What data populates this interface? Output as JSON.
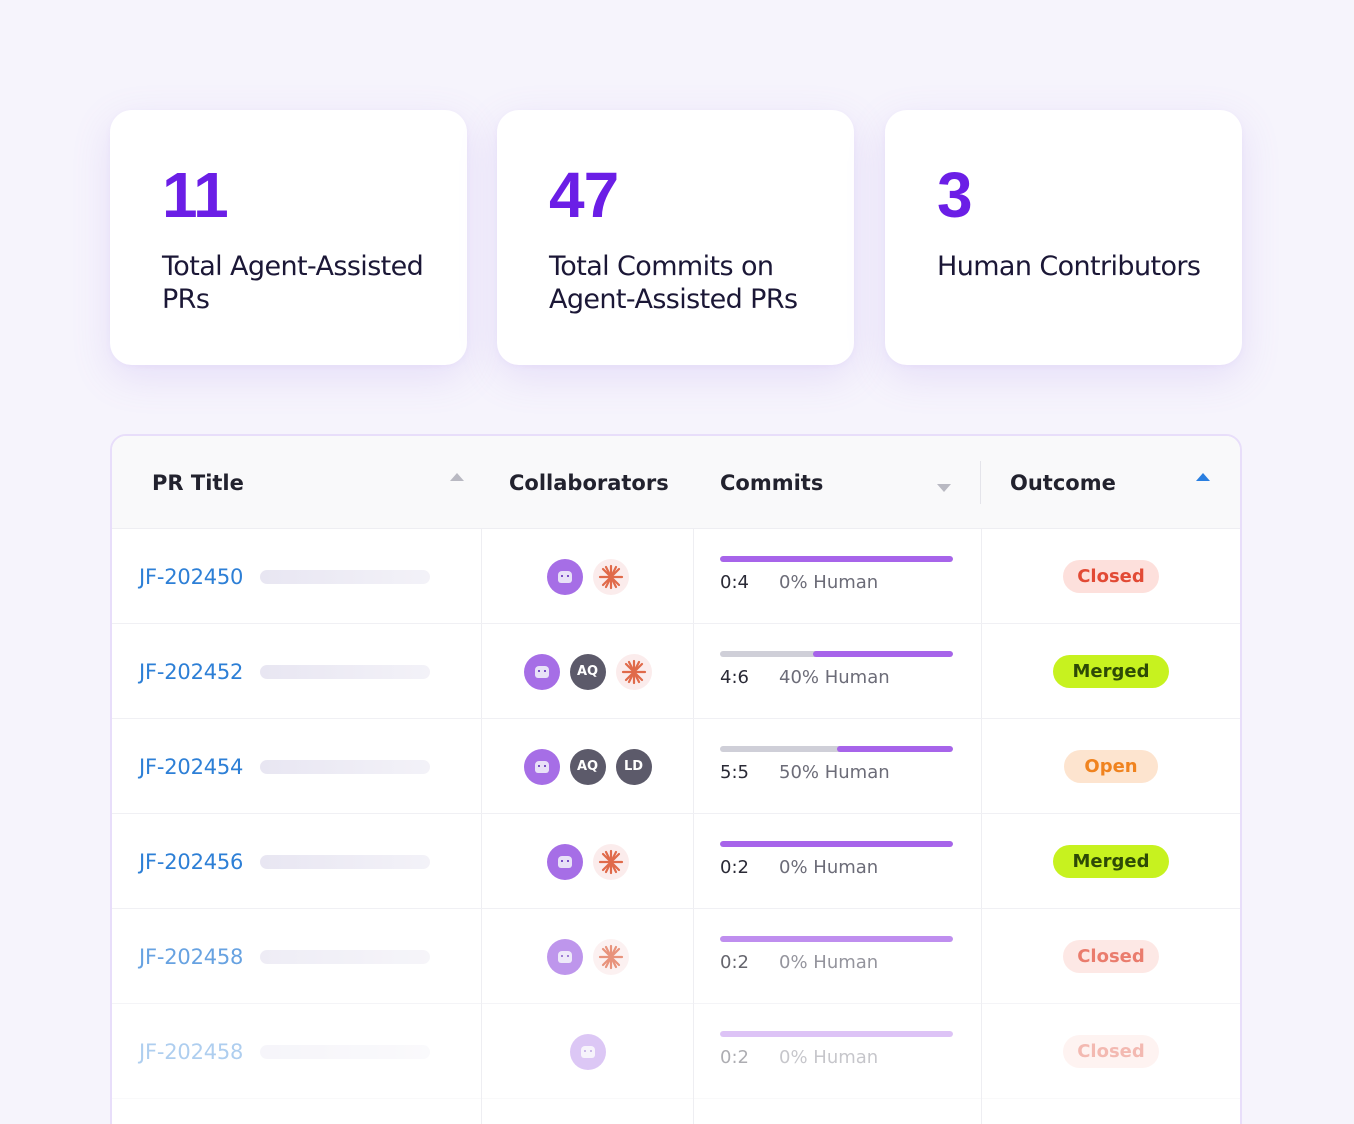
{
  "stats": [
    {
      "value": "11",
      "label": "Total Agent-Assisted PRs"
    },
    {
      "value": "47",
      "label": "Total Commits on Agent-Assisted PRs"
    },
    {
      "value": "3",
      "label": "Human Contributors"
    }
  ],
  "table": {
    "headers": {
      "pr_title": "PR Title",
      "collaborators": "Collaborators",
      "commits": "Commits",
      "outcome": "Outcome"
    },
    "sort_active_color": "#2a7fe0",
    "rows": [
      {
        "id": "JF-202450",
        "collaborators": [
          "agent-icon",
          "sparkle-icon"
        ],
        "ratio": "0:4",
        "human": "0% Human",
        "human_fraction": 0.0,
        "outcome": "Closed"
      },
      {
        "id": "JF-202452",
        "collaborators": [
          "agent-icon",
          "AQ",
          "sparkle-icon"
        ],
        "ratio": "4:6",
        "human": "40% Human",
        "human_fraction": 0.4,
        "outcome": "Merged"
      },
      {
        "id": "JF-202454",
        "collaborators": [
          "agent-icon",
          "AQ",
          "LD"
        ],
        "ratio": "5:5",
        "human": "50% Human",
        "human_fraction": 0.5,
        "outcome": "Open"
      },
      {
        "id": "JF-202456",
        "collaborators": [
          "agent-icon",
          "sparkle-icon"
        ],
        "ratio": "0:2",
        "human": "0% Human",
        "human_fraction": 0.0,
        "outcome": "Merged"
      },
      {
        "id": "JF-202458",
        "collaborators": [
          "agent-icon",
          "sparkle-icon"
        ],
        "ratio": "0:2",
        "human": "0% Human",
        "human_fraction": 0.0,
        "outcome": "Closed"
      },
      {
        "id": "JF-202458",
        "collaborators": [
          "agent-icon"
        ],
        "ratio": "0:2",
        "human": "0% Human",
        "human_fraction": 0.0,
        "outcome": "Closed"
      }
    ]
  },
  "colors": {
    "accent": "#6b1ee6",
    "link": "#2d7fd6",
    "bar_agent": "#a764ea",
    "bar_human": "#cfcfd8"
  }
}
